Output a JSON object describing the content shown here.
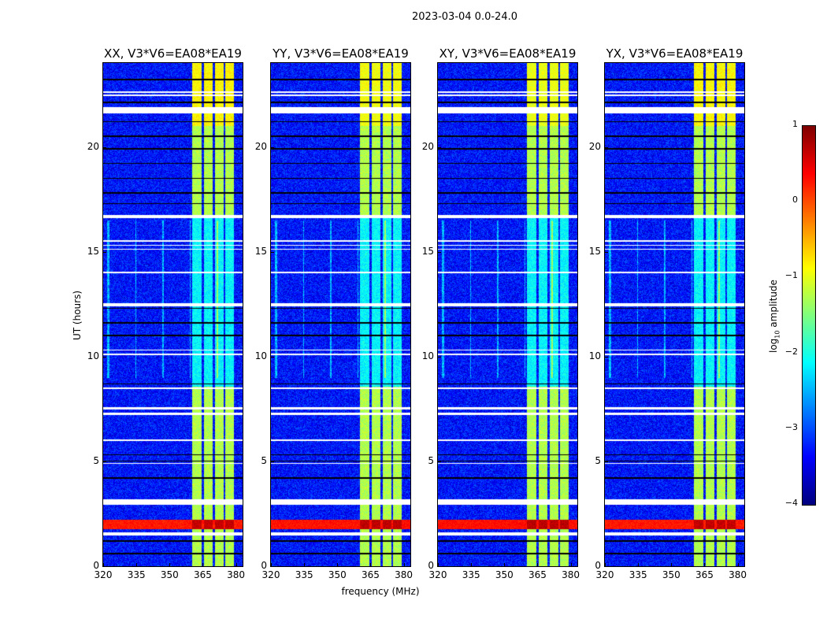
{
  "chart_data": {
    "type": "heatmap",
    "title": "2023-03-04 0.0-24.0",
    "xlabel": "frequency (MHz)",
    "ylabel": "UT (hours)",
    "xlim": [
      320,
      383
    ],
    "ylim": [
      0,
      24
    ],
    "xticks": [
      320,
      335,
      350,
      365,
      380
    ],
    "yticks": [
      0,
      5,
      10,
      15,
      20
    ],
    "panels": [
      {
        "title": "XX, V3*V6=EA08*EA19",
        "rfi_strength": 1.0
      },
      {
        "title": "YY, V3*V6=EA08*EA19",
        "rfi_strength": 0.8
      },
      {
        "title": "XY, V3*V6=EA08*EA19",
        "rfi_strength": 0.7
      },
      {
        "title": "YX, V3*V6=EA08*EA19",
        "rfi_strength": 0.95
      }
    ],
    "colorbar": {
      "label": "log10 amplitude",
      "label_main": "log",
      "label_sub": "10",
      "label_rest": " amplitude",
      "range": [
        -4,
        1
      ],
      "ticks": [
        "1",
        "0",
        "−1",
        "−2",
        "−3",
        "−4"
      ],
      "tick_values": [
        1,
        0,
        -1,
        -2,
        -3,
        -4
      ],
      "colormap": "jet"
    },
    "background_level": -3.3,
    "bright_channels_mhz": [
      [
        360,
        364.3
      ],
      [
        365.4,
        369.3
      ],
      [
        370.4,
        374.3
      ],
      [
        375,
        379
      ]
    ],
    "bright_channel_level": -1.2,
    "bright_time_ranges_h": [
      [
        0,
        8.6
      ],
      [
        16.7,
        24
      ]
    ],
    "broadband_rfi_h": [
      [
        1.8,
        2.25
      ]
    ],
    "flagged_rows_h": [
      [
        21.6,
        21.9
      ],
      [
        22.45,
        22.52
      ],
      [
        22.6,
        22.66
      ],
      [
        16.62,
        16.78
      ],
      [
        12.42,
        12.58
      ],
      [
        8.48,
        8.56
      ],
      [
        7.22,
        7.36
      ],
      [
        7.5,
        7.6
      ],
      [
        2.95,
        3.2
      ],
      [
        1.5,
        1.62
      ],
      [
        15.1,
        15.16
      ],
      [
        15.3,
        15.36
      ],
      [
        15.5,
        15.55
      ],
      [
        14.0,
        14.05
      ],
      [
        10.3,
        10.36
      ],
      [
        10.1,
        10.15
      ],
      [
        6.0,
        6.05
      ],
      [
        4.9,
        4.95
      ]
    ],
    "zero_rows_h": [
      [
        23.2,
        23.27
      ],
      [
        22.1,
        22.17
      ],
      [
        21.2,
        21.25
      ],
      [
        20.5,
        20.55
      ],
      [
        19.9,
        19.95
      ],
      [
        19.2,
        19.25
      ],
      [
        18.5,
        18.55
      ],
      [
        17.8,
        17.85
      ],
      [
        17.3,
        17.35
      ],
      [
        12.3,
        12.35
      ],
      [
        11.6,
        11.65
      ],
      [
        11.0,
        11.05
      ],
      [
        8.7,
        8.75
      ],
      [
        5.3,
        5.36
      ],
      [
        5.0,
        5.04
      ],
      [
        4.2,
        4.25
      ],
      [
        1.2,
        1.25
      ],
      [
        0.6,
        0.65
      ]
    ]
  }
}
